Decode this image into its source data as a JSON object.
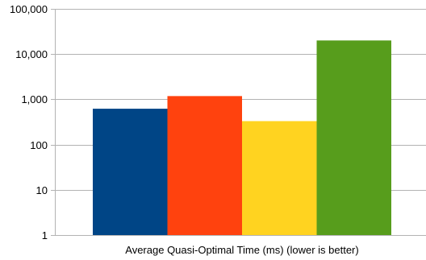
{
  "chart_data": {
    "type": "bar",
    "scale": "log",
    "categories": [
      "Average Quasi-Optimal Time (ms) (lower is better)"
    ],
    "series": [
      {
        "values": [
          620
        ],
        "color": "#004586"
      },
      {
        "values": [
          1180
        ],
        "color": "#ff420e"
      },
      {
        "values": [
          330
        ],
        "color": "#ffd320"
      },
      {
        "values": [
          20000
        ],
        "color": "#579d1c"
      }
    ],
    "yticks": [
      "1",
      "10",
      "100",
      "1,000",
      "10,000",
      "100,000"
    ],
    "ylim": [
      1,
      100000
    ],
    "grid": true,
    "legend": "none"
  }
}
